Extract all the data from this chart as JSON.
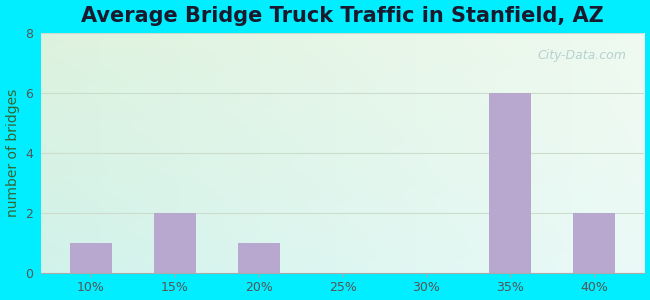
{
  "title": "Average Bridge Truck Traffic in Stanfield, AZ",
  "ylabel": "number of bridges",
  "categories": [
    "10%",
    "15%",
    "20%",
    "25%",
    "30%",
    "35%",
    "40%"
  ],
  "values": [
    1,
    2,
    1,
    0,
    0,
    6,
    2
  ],
  "bar_color": "#b8a8d0",
  "ylim": [
    0,
    8
  ],
  "yticks": [
    0,
    2,
    4,
    6,
    8
  ],
  "outer_background": "#00eeff",
  "plot_bg_topleft": "#dff2df",
  "plot_bg_topright": "#f0f8f0",
  "plot_bg_bottomleft": "#d0f5f0",
  "plot_bg_bottomright": "#e8faf8",
  "title_fontsize": 15,
  "title_color": "#1a1a2e",
  "ylabel_fontsize": 10,
  "ylabel_color": "#336633",
  "tick_fontsize": 9,
  "tick_color": "#555555",
  "grid_color": "#ccddcc",
  "watermark": "City-Data.com",
  "watermark_color": "#aacccc",
  "watermark_fontsize": 9
}
